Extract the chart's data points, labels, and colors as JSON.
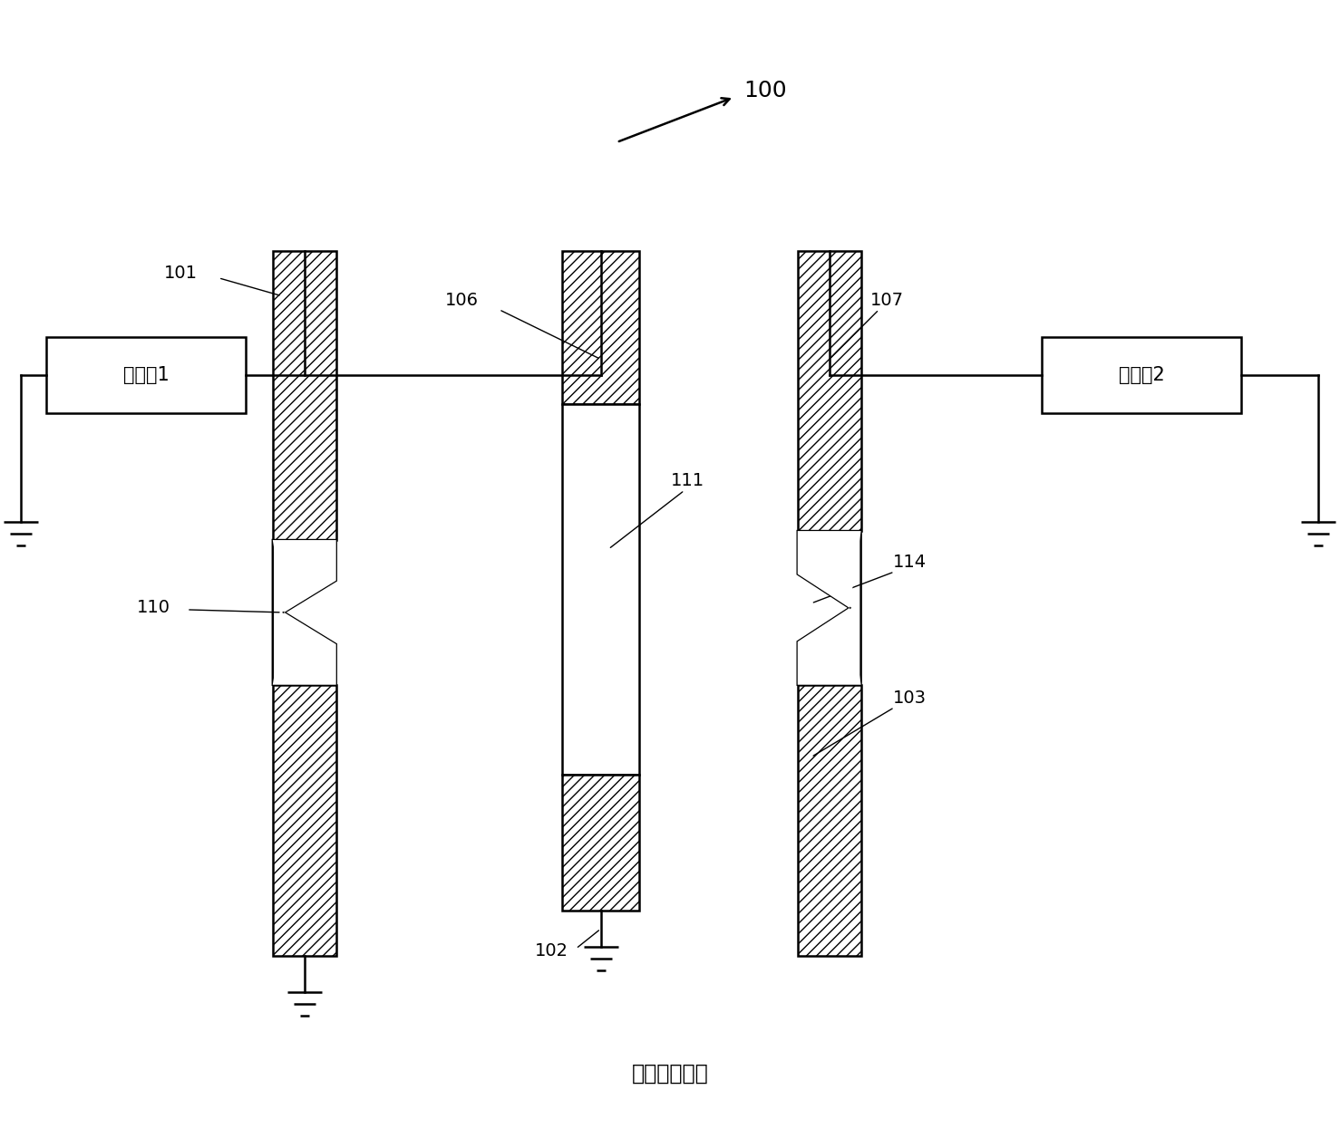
{
  "bg_color": "#ffffff",
  "fig_width": 14.78,
  "fig_height": 12.56,
  "box1_label": "信号源1",
  "box2_label": "信号源2",
  "bottom_label": "（现有技术）",
  "label_100": "100",
  "label_106": "106",
  "label_107": "107",
  "label_101": "101",
  "label_102": "102",
  "label_103": "103",
  "label_110": "110",
  "label_111": "111",
  "label_114": "114"
}
